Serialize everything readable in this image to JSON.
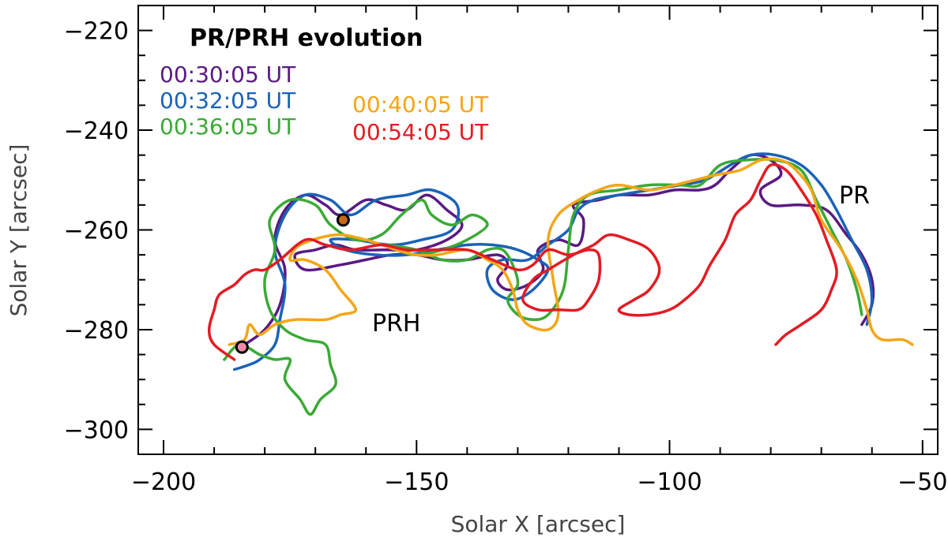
{
  "chart_data": {
    "type": "line",
    "title": "PR/PRH evolution",
    "xlabel": "Solar X [arcsec]",
    "ylabel": "Solar Y [arcsec]",
    "xlim": [
      -205,
      -47
    ],
    "ylim": [
      -305,
      -215
    ],
    "xticks": [
      -200,
      -150,
      -100,
      -50
    ],
    "xtick_labels": [
      "−200",
      "−150",
      "−100",
      "−50"
    ],
    "yticks": [
      -220,
      -240,
      -260,
      -280,
      -300
    ],
    "ytick_labels": [
      "−220",
      "−240",
      "−260",
      "−280",
      "−300"
    ],
    "grid": false,
    "series": [
      {
        "name": "00:30:05 UT",
        "color": "#5a1a82",
        "points": [
          [
            -184,
            -283
          ],
          [
            -180,
            -280
          ],
          [
            -177,
            -275
          ],
          [
            -176,
            -268
          ],
          [
            -178,
            -262
          ],
          [
            -176,
            -256
          ],
          [
            -172,
            -253
          ],
          [
            -168,
            -255
          ],
          [
            -165,
            -257
          ],
          [
            -160,
            -254
          ],
          [
            -156,
            -255
          ],
          [
            -152,
            -256
          ],
          [
            -148,
            -253
          ],
          [
            -144,
            -256
          ],
          [
            -141,
            -259
          ],
          [
            -144,
            -262
          ],
          [
            -150,
            -264
          ],
          [
            -156,
            -264
          ],
          [
            -162,
            -264
          ],
          [
            -166,
            -263
          ],
          [
            -170,
            -264
          ],
          [
            -174,
            -265
          ],
          [
            -172,
            -268
          ],
          [
            -165,
            -267
          ],
          [
            -160,
            -266
          ],
          [
            -155,
            -265
          ],
          [
            -150,
            -265
          ],
          [
            -145,
            -266
          ],
          [
            -140,
            -266
          ],
          [
            -134,
            -265
          ],
          [
            -132,
            -267
          ],
          [
            -134,
            -270
          ],
          [
            -132,
            -272
          ],
          [
            -128,
            -271
          ],
          [
            -125,
            -268
          ],
          [
            -126,
            -264
          ],
          [
            -122,
            -262
          ],
          [
            -118,
            -263
          ],
          [
            -117,
            -258
          ],
          [
            -119,
            -255
          ],
          [
            -114,
            -254
          ],
          [
            -110,
            -253
          ],
          [
            -104,
            -253
          ],
          [
            -99,
            -252
          ],
          [
            -94,
            -252
          ],
          [
            -91,
            -251
          ],
          [
            -88,
            -248
          ],
          [
            -84,
            -245
          ],
          [
            -80,
            -246
          ],
          [
            -78,
            -249
          ],
          [
            -82,
            -252
          ],
          [
            -80,
            -255
          ],
          [
            -74,
            -255
          ],
          [
            -69,
            -256
          ],
          [
            -65,
            -261
          ],
          [
            -62,
            -265
          ],
          [
            -60,
            -270
          ],
          [
            -60,
            -275
          ],
          [
            -62,
            -279
          ]
        ]
      },
      {
        "name": "00:32:05 UT",
        "color": "#1a62b8",
        "points": [
          [
            -186,
            -288
          ],
          [
            -183,
            -287
          ],
          [
            -181,
            -286
          ],
          [
            -178,
            -283
          ],
          [
            -177,
            -278
          ],
          [
            -176,
            -271
          ],
          [
            -178,
            -264
          ],
          [
            -176,
            -257
          ],
          [
            -172,
            -253
          ],
          [
            -167,
            -254
          ],
          [
            -163,
            -257
          ],
          [
            -158,
            -254
          ],
          [
            -152,
            -253
          ],
          [
            -147,
            -252
          ],
          [
            -142,
            -255
          ],
          [
            -143,
            -260
          ],
          [
            -149,
            -262
          ],
          [
            -155,
            -263
          ],
          [
            -162,
            -262
          ],
          [
            -167,
            -262
          ],
          [
            -164,
            -264
          ],
          [
            -158,
            -265
          ],
          [
            -152,
            -265
          ],
          [
            -146,
            -264
          ],
          [
            -140,
            -263
          ],
          [
            -135,
            -263
          ],
          [
            -130,
            -264
          ],
          [
            -126,
            -266
          ],
          [
            -124,
            -268
          ],
          [
            -127,
            -272
          ],
          [
            -131,
            -274
          ],
          [
            -135,
            -272
          ],
          [
            -136,
            -268
          ],
          [
            -133,
            -266
          ],
          [
            -128,
            -266
          ],
          [
            -124,
            -263
          ],
          [
            -120,
            -260
          ],
          [
            -118,
            -256
          ],
          [
            -115,
            -254
          ],
          [
            -110,
            -253
          ],
          [
            -104,
            -252
          ],
          [
            -98,
            -251
          ],
          [
            -93,
            -250
          ],
          [
            -88,
            -247
          ],
          [
            -84,
            -245
          ],
          [
            -79,
            -245
          ],
          [
            -74,
            -247
          ],
          [
            -70,
            -251
          ],
          [
            -67,
            -256
          ],
          [
            -64,
            -262
          ],
          [
            -61,
            -268
          ],
          [
            -60,
            -274
          ],
          [
            -61,
            -279
          ]
        ]
      },
      {
        "name": "00:36:05 UT",
        "color": "#3aaa35",
        "points": [
          [
            -188,
            -286
          ],
          [
            -185,
            -283
          ],
          [
            -181,
            -285
          ],
          [
            -178,
            -286
          ],
          [
            -175,
            -286
          ],
          [
            -176,
            -290
          ],
          [
            -173,
            -294
          ],
          [
            -171,
            -297
          ],
          [
            -169,
            -294
          ],
          [
            -166,
            -291
          ],
          [
            -167,
            -287
          ],
          [
            -168,
            -283
          ],
          [
            -172,
            -282
          ],
          [
            -176,
            -280
          ],
          [
            -179,
            -276
          ],
          [
            -180,
            -270
          ],
          [
            -178,
            -264
          ],
          [
            -179,
            -258
          ],
          [
            -175,
            -254
          ],
          [
            -170,
            -255
          ],
          [
            -167,
            -259
          ],
          [
            -162,
            -262
          ],
          [
            -157,
            -261
          ],
          [
            -153,
            -257
          ],
          [
            -149,
            -254
          ],
          [
            -147,
            -257
          ],
          [
            -143,
            -259
          ],
          [
            -139,
            -257
          ],
          [
            -136,
            -259
          ],
          [
            -140,
            -262
          ],
          [
            -145,
            -264
          ],
          [
            -150,
            -265
          ],
          [
            -154,
            -264
          ],
          [
            -156,
            -263
          ],
          [
            -150,
            -264
          ],
          [
            -145,
            -266
          ],
          [
            -140,
            -266
          ],
          [
            -136,
            -264
          ],
          [
            -133,
            -264
          ],
          [
            -131,
            -267
          ],
          [
            -130,
            -271
          ],
          [
            -132,
            -274
          ],
          [
            -130,
            -277
          ],
          [
            -127,
            -278
          ],
          [
            -124,
            -277
          ],
          [
            -121,
            -272
          ],
          [
            -120,
            -264
          ],
          [
            -119,
            -257
          ],
          [
            -116,
            -253
          ],
          [
            -110,
            -252
          ],
          [
            -104,
            -251
          ],
          [
            -98,
            -251
          ],
          [
            -94,
            -251
          ],
          [
            -90,
            -247
          ],
          [
            -85,
            -246
          ],
          [
            -79,
            -246
          ],
          [
            -74,
            -248
          ],
          [
            -71,
            -254
          ],
          [
            -68,
            -260
          ],
          [
            -65,
            -266
          ],
          [
            -63,
            -272
          ],
          [
            -62,
            -277
          ]
        ]
      },
      {
        "name": "00:40:05 UT",
        "color": "#f5a516",
        "points": [
          [
            -187,
            -283
          ],
          [
            -184,
            -282
          ],
          [
            -183,
            -279
          ],
          [
            -181,
            -281
          ],
          [
            -178,
            -279
          ],
          [
            -174,
            -278
          ],
          [
            -168,
            -278
          ],
          [
            -165,
            -277
          ],
          [
            -162,
            -276
          ],
          [
            -165,
            -272
          ],
          [
            -168,
            -268
          ],
          [
            -172,
            -266
          ],
          [
            -175,
            -266
          ],
          [
            -173,
            -263
          ],
          [
            -166,
            -261
          ],
          [
            -160,
            -262
          ],
          [
            -154,
            -264
          ],
          [
            -150,
            -265
          ],
          [
            -146,
            -265
          ],
          [
            -140,
            -264
          ],
          [
            -136,
            -266
          ],
          [
            -133,
            -268
          ],
          [
            -131,
            -272
          ],
          [
            -130,
            -276
          ],
          [
            -128,
            -279
          ],
          [
            -124,
            -280
          ],
          [
            -122,
            -277
          ],
          [
            -123,
            -270
          ],
          [
            -124,
            -262
          ],
          [
            -122,
            -257
          ],
          [
            -118,
            -254
          ],
          [
            -114,
            -252
          ],
          [
            -110,
            -251
          ],
          [
            -104,
            -252
          ],
          [
            -99,
            -251
          ],
          [
            -95,
            -250
          ],
          [
            -91,
            -249
          ],
          [
            -86,
            -248
          ],
          [
            -82,
            -246
          ],
          [
            -78,
            -246
          ],
          [
            -75,
            -248
          ],
          [
            -72,
            -252
          ],
          [
            -70,
            -258
          ],
          [
            -66,
            -264
          ],
          [
            -63,
            -270
          ],
          [
            -61,
            -276
          ],
          [
            -60,
            -280
          ],
          [
            -58,
            -282
          ],
          [
            -54,
            -282
          ],
          [
            -52,
            -283
          ]
        ]
      },
      {
        "name": "00:54:05 UT",
        "color": "#e31b23",
        "points": [
          [
            -186,
            -286
          ],
          [
            -190,
            -283
          ],
          [
            -191,
            -280
          ],
          [
            -190,
            -276
          ],
          [
            -189,
            -273
          ],
          [
            -186,
            -271
          ],
          [
            -184,
            -269
          ],
          [
            -182,
            -268
          ],
          [
            -180,
            -268
          ],
          [
            -177,
            -266
          ],
          [
            -172,
            -262
          ],
          [
            -168,
            -263
          ],
          [
            -163,
            -264
          ],
          [
            -157,
            -263
          ],
          [
            -152,
            -264
          ],
          [
            -146,
            -264
          ],
          [
            -140,
            -264
          ],
          [
            -135,
            -266
          ],
          [
            -130,
            -268
          ],
          [
            -127,
            -267
          ],
          [
            -124,
            -264
          ],
          [
            -120,
            -265
          ],
          [
            -116,
            -264
          ],
          [
            -114,
            -265
          ],
          [
            -114,
            -270
          ],
          [
            -116,
            -274
          ],
          [
            -118,
            -276
          ],
          [
            -122,
            -276
          ],
          [
            -126,
            -276
          ],
          [
            -129,
            -274
          ],
          [
            -127,
            -270
          ],
          [
            -124,
            -268
          ],
          [
            -119,
            -265
          ],
          [
            -115,
            -263
          ],
          [
            -112,
            -261
          ],
          [
            -108,
            -262
          ],
          [
            -104,
            -264
          ],
          [
            -102,
            -268
          ],
          [
            -104,
            -272
          ],
          [
            -107,
            -274
          ],
          [
            -110,
            -276
          ],
          [
            -108,
            -277
          ],
          [
            -104,
            -277
          ],
          [
            -100,
            -276
          ],
          [
            -97,
            -274
          ],
          [
            -94,
            -271
          ],
          [
            -92,
            -267
          ],
          [
            -89,
            -262
          ],
          [
            -87,
            -257
          ],
          [
            -84,
            -254
          ],
          [
            -82,
            -250
          ],
          [
            -80,
            -247
          ],
          [
            -77,
            -248
          ],
          [
            -74,
            -252
          ],
          [
            -71,
            -257
          ],
          [
            -69,
            -262
          ],
          [
            -67,
            -268
          ],
          [
            -68,
            -272
          ],
          [
            -70,
            -276
          ],
          [
            -74,
            -279
          ],
          [
            -77,
            -281
          ],
          [
            -79,
            -283
          ]
        ]
      }
    ],
    "markers": [
      {
        "x": -164.5,
        "y": -258,
        "fill": "#c56a18"
      },
      {
        "x": -184.5,
        "y": -283.5,
        "fill": "#f08ca8"
      }
    ],
    "annotations": [
      {
        "text": "PR",
        "x": -65,
        "y": -254
      },
      {
        "text": "PRH",
        "x": -153,
        "y": -279
      }
    ]
  }
}
